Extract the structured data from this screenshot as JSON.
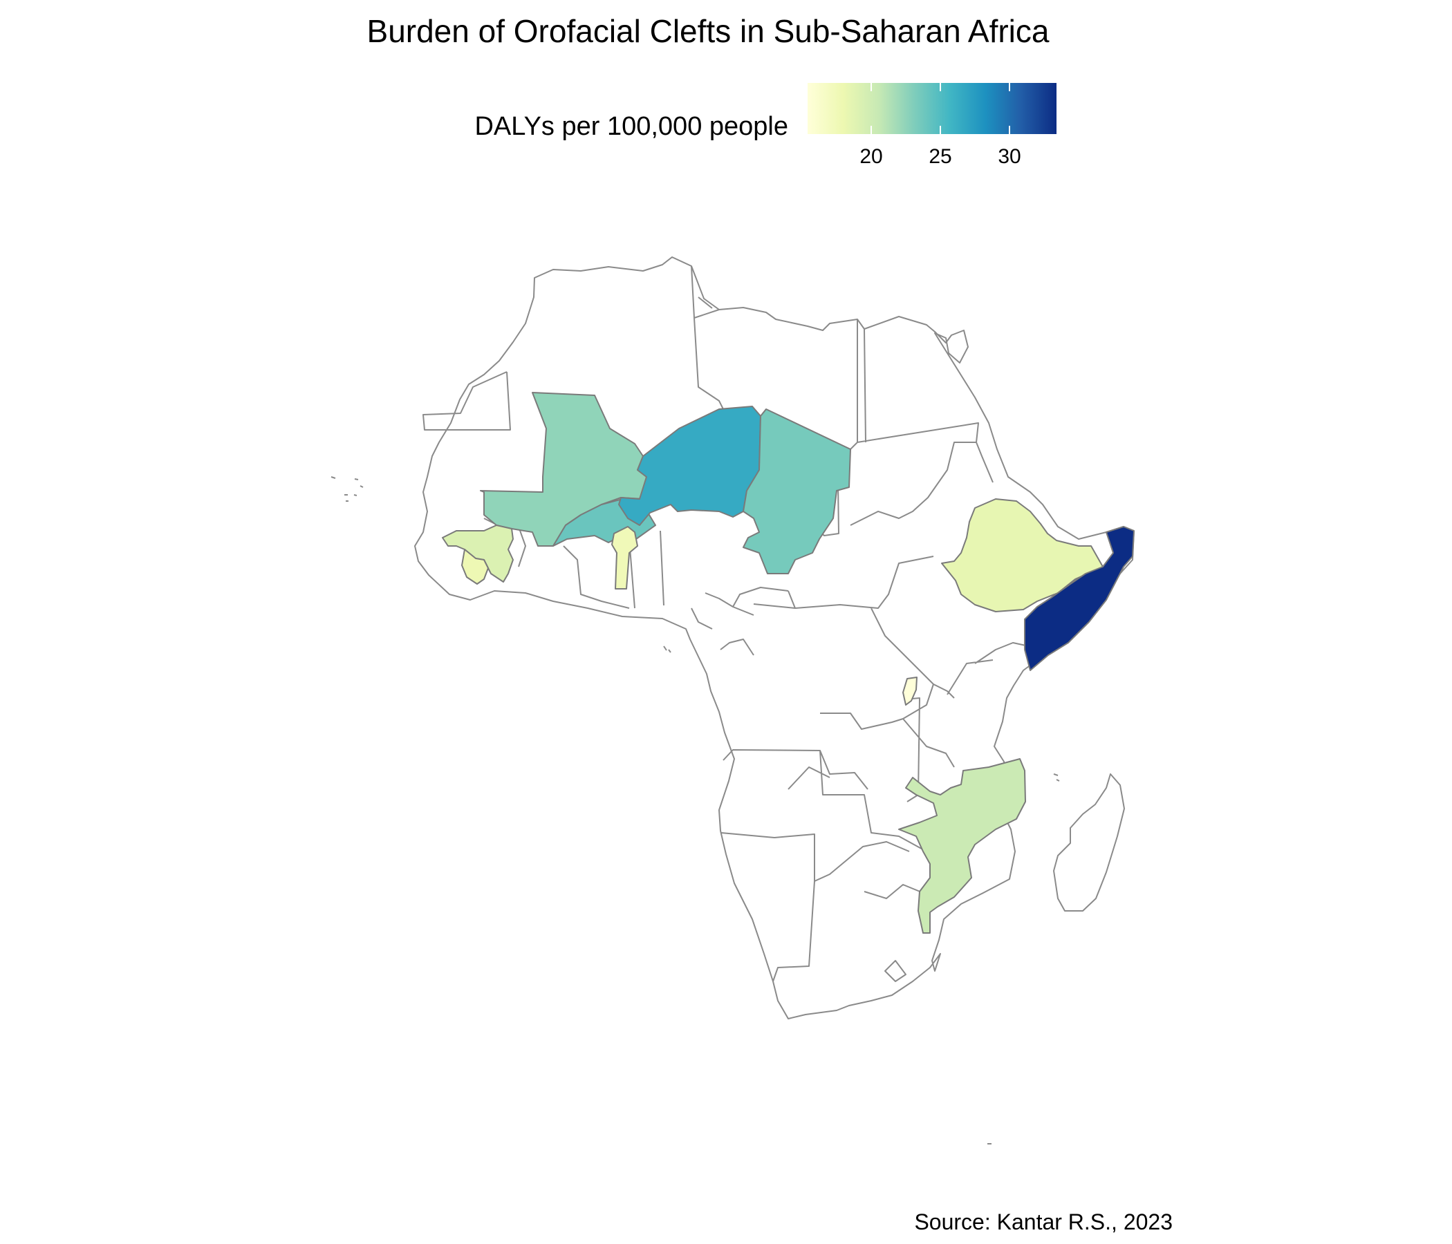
{
  "title": "Burden of Orofacial Clefts in Sub-Saharan Africa",
  "source": "Source: Kantar R.S., 2023",
  "legend": {
    "title": "DALYs per 100,000 people",
    "min": 15.4,
    "max": 33.4,
    "ticks": [
      {
        "value": 20,
        "label": "20"
      },
      {
        "value": 25,
        "label": "25"
      },
      {
        "value": 30,
        "label": "30"
      }
    ],
    "palette": [
      "#ffffd9",
      "#edf8b1",
      "#c7e9b4",
      "#7fcdbb",
      "#41b6c4",
      "#1d91c0",
      "#225ea8",
      "#0c2c84"
    ]
  },
  "chart_data": {
    "type": "choropleth",
    "metric": "DALYs per 100,000 people",
    "regions": [
      {
        "name": "Somalia",
        "value": 33.4
      },
      {
        "name": "Niger",
        "value": 26.5
      },
      {
        "name": "Burkina Faso",
        "value": 24.0
      },
      {
        "name": "Chad",
        "value": 23.5
      },
      {
        "name": "Mali",
        "value": 22.5
      },
      {
        "name": "Mozambique",
        "value": 20.3
      },
      {
        "name": "Guinea",
        "value": 19.2
      },
      {
        "name": "Ethiopia",
        "value": 18.4
      },
      {
        "name": "Sierra Leone",
        "value": 17.8
      },
      {
        "name": "Benin",
        "value": 17.5
      },
      {
        "name": "Burundi",
        "value": 15.4
      }
    ]
  }
}
